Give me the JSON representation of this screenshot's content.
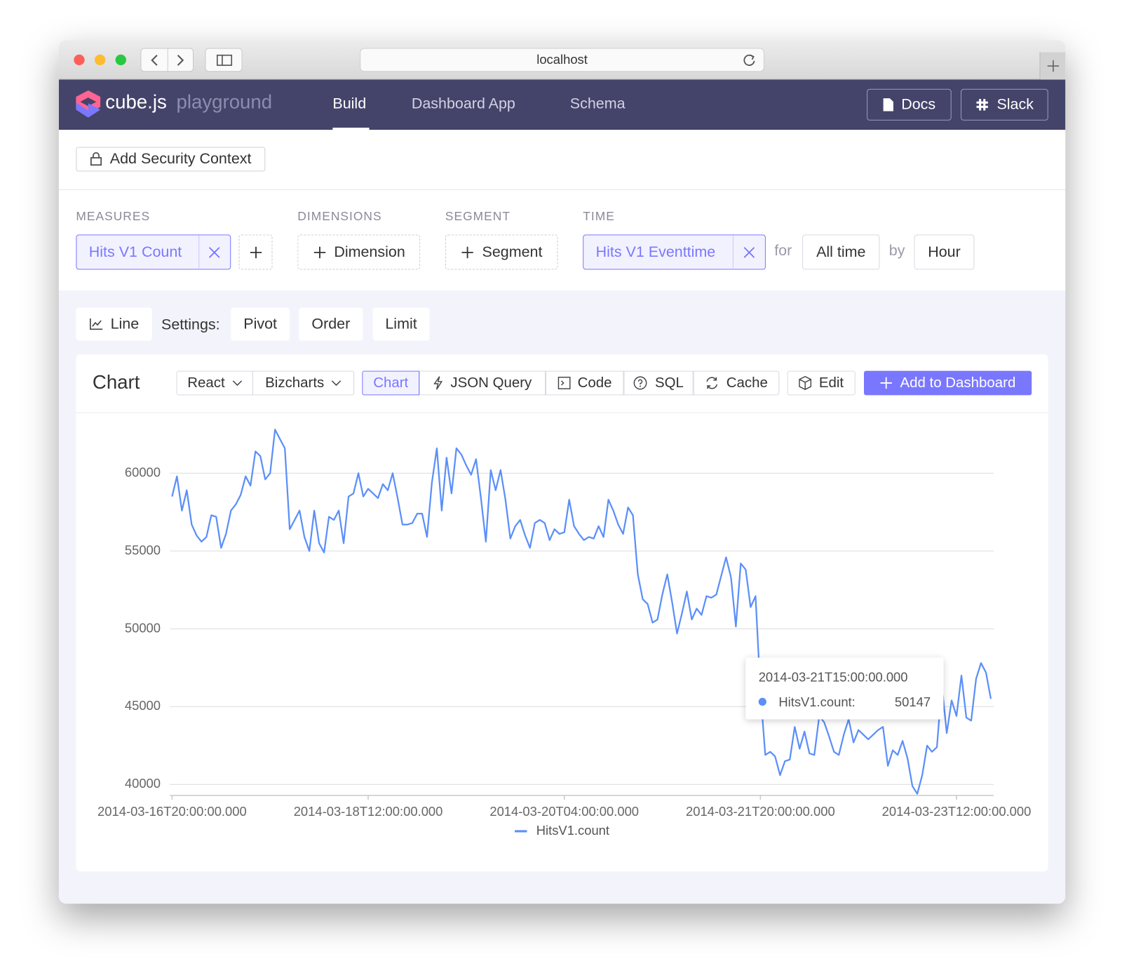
{
  "browser": {
    "url": "localhost"
  },
  "nav": {
    "logo": "cube.js",
    "logo_sub": "playground",
    "tabs": [
      "Build",
      "Dashboard App",
      "Schema"
    ],
    "buttons": [
      "Docs",
      "Slack"
    ]
  },
  "security": "Add Security Context",
  "query": {
    "measures_label": "MEASURES",
    "measure": "Hits V1 Count",
    "dimensions_label": "DIMENSIONS",
    "dimension_button": "Dimension",
    "segment_label": "SEGMENT",
    "segment_button": "Segment",
    "time_label": "TIME",
    "time": "Hits V1 Eventtime",
    "for": "for",
    "range": "All time",
    "by": "by",
    "granularity": "Hour"
  },
  "settings": {
    "chart_type": "Line",
    "label": "Settings:",
    "buttons": [
      "Pivot",
      "Order",
      "Limit"
    ]
  },
  "card": {
    "title": "Chart",
    "framework": "React",
    "library": "Bizcharts",
    "tabs": [
      "Chart",
      "JSON Query",
      "Code",
      "SQL",
      "Cache"
    ],
    "edit": "Edit",
    "add": "Add to Dashboard"
  },
  "chart_data": {
    "type": "line",
    "x": [
      "2014-03-16T20:00:00.000",
      "2014-03-16T21:00:00.000",
      "2014-03-16T22:00:00.000",
      "2014-03-16T23:00:00.000",
      "2014-03-17T00:00:00.000",
      "2014-03-17T01:00:00.000",
      "2014-03-17T02:00:00.000",
      "2014-03-17T03:00:00.000",
      "2014-03-17T04:00:00.000",
      "2014-03-17T05:00:00.000",
      "2014-03-17T06:00:00.000",
      "2014-03-17T07:00:00.000",
      "2014-03-17T08:00:00.000",
      "2014-03-17T09:00:00.000",
      "2014-03-17T10:00:00.000",
      "2014-03-17T11:00:00.000",
      "2014-03-17T12:00:00.000",
      "2014-03-17T13:00:00.000",
      "2014-03-17T14:00:00.000",
      "2014-03-17T15:00:00.000",
      "2014-03-17T16:00:00.000",
      "2014-03-17T17:00:00.000",
      "2014-03-17T18:00:00.000",
      "2014-03-17T19:00:00.000",
      "2014-03-17T20:00:00.000",
      "2014-03-17T21:00:00.000",
      "2014-03-17T22:00:00.000",
      "2014-03-17T23:00:00.000",
      "2014-03-18T00:00:00.000",
      "2014-03-18T01:00:00.000",
      "2014-03-18T02:00:00.000",
      "2014-03-18T03:00:00.000",
      "2014-03-18T04:00:00.000",
      "2014-03-18T05:00:00.000",
      "2014-03-18T06:00:00.000",
      "2014-03-18T07:00:00.000",
      "2014-03-18T08:00:00.000",
      "2014-03-18T09:00:00.000",
      "2014-03-18T10:00:00.000",
      "2014-03-18T11:00:00.000",
      "2014-03-18T12:00:00.000",
      "2014-03-18T13:00:00.000",
      "2014-03-18T14:00:00.000",
      "2014-03-18T15:00:00.000",
      "2014-03-18T16:00:00.000",
      "2014-03-18T17:00:00.000",
      "2014-03-18T18:00:00.000",
      "2014-03-18T19:00:00.000",
      "2014-03-18T20:00:00.000",
      "2014-03-18T21:00:00.000",
      "2014-03-18T22:00:00.000",
      "2014-03-18T23:00:00.000",
      "2014-03-19T00:00:00.000",
      "2014-03-19T01:00:00.000",
      "2014-03-19T02:00:00.000",
      "2014-03-19T03:00:00.000",
      "2014-03-19T04:00:00.000",
      "2014-03-19T05:00:00.000",
      "2014-03-19T06:00:00.000",
      "2014-03-19T07:00:00.000",
      "2014-03-19T08:00:00.000",
      "2014-03-19T09:00:00.000",
      "2014-03-19T10:00:00.000",
      "2014-03-19T11:00:00.000",
      "2014-03-19T12:00:00.000",
      "2014-03-19T13:00:00.000",
      "2014-03-19T14:00:00.000",
      "2014-03-19T15:00:00.000",
      "2014-03-19T16:00:00.000",
      "2014-03-19T17:00:00.000",
      "2014-03-19T18:00:00.000",
      "2014-03-19T19:00:00.000",
      "2014-03-19T20:00:00.000",
      "2014-03-19T21:00:00.000",
      "2014-03-19T22:00:00.000",
      "2014-03-19T23:00:00.000",
      "2014-03-20T00:00:00.000",
      "2014-03-20T01:00:00.000",
      "2014-03-20T02:00:00.000",
      "2014-03-20T03:00:00.000",
      "2014-03-20T04:00:00.000",
      "2014-03-20T05:00:00.000",
      "2014-03-20T06:00:00.000",
      "2014-03-20T07:00:00.000",
      "2014-03-20T08:00:00.000",
      "2014-03-20T09:00:00.000",
      "2014-03-20T10:00:00.000",
      "2014-03-20T11:00:00.000",
      "2014-03-20T12:00:00.000",
      "2014-03-20T13:00:00.000",
      "2014-03-20T14:00:00.000",
      "2014-03-20T15:00:00.000",
      "2014-03-20T16:00:00.000",
      "2014-03-20T17:00:00.000",
      "2014-03-20T18:00:00.000",
      "2014-03-20T19:00:00.000",
      "2014-03-20T20:00:00.000",
      "2014-03-20T21:00:00.000",
      "2014-03-20T22:00:00.000",
      "2014-03-20T23:00:00.000",
      "2014-03-21T00:00:00.000",
      "2014-03-21T01:00:00.000",
      "2014-03-21T02:00:00.000",
      "2014-03-21T03:00:00.000",
      "2014-03-21T04:00:00.000",
      "2014-03-21T05:00:00.000",
      "2014-03-21T06:00:00.000",
      "2014-03-21T07:00:00.000",
      "2014-03-21T08:00:00.000",
      "2014-03-21T09:00:00.000",
      "2014-03-21T10:00:00.000",
      "2014-03-21T11:00:00.000",
      "2014-03-21T12:00:00.000",
      "2014-03-21T13:00:00.000",
      "2014-03-21T14:00:00.000",
      "2014-03-21T15:00:00.000",
      "2014-03-21T16:00:00.000",
      "2014-03-21T17:00:00.000",
      "2014-03-21T18:00:00.000",
      "2014-03-21T19:00:00.000",
      "2014-03-21T20:00:00.000",
      "2014-03-21T21:00:00.000",
      "2014-03-21T22:00:00.000",
      "2014-03-21T23:00:00.000",
      "2014-03-22T00:00:00.000",
      "2014-03-22T01:00:00.000",
      "2014-03-22T02:00:00.000",
      "2014-03-22T03:00:00.000",
      "2014-03-22T04:00:00.000",
      "2014-03-22T05:00:00.000",
      "2014-03-22T06:00:00.000",
      "2014-03-22T07:00:00.000",
      "2014-03-22T08:00:00.000",
      "2014-03-22T09:00:00.000",
      "2014-03-22T10:00:00.000",
      "2014-03-22T11:00:00.000",
      "2014-03-22T12:00:00.000",
      "2014-03-22T13:00:00.000",
      "2014-03-22T14:00:00.000",
      "2014-03-22T15:00:00.000",
      "2014-03-22T16:00:00.000",
      "2014-03-22T17:00:00.000",
      "2014-03-22T18:00:00.000",
      "2014-03-22T19:00:00.000",
      "2014-03-22T20:00:00.000",
      "2014-03-22T21:00:00.000",
      "2014-03-22T22:00:00.000",
      "2014-03-22T23:00:00.000",
      "2014-03-23T00:00:00.000",
      "2014-03-23T01:00:00.000",
      "2014-03-23T02:00:00.000",
      "2014-03-23T03:00:00.000",
      "2014-03-23T04:00:00.000",
      "2014-03-23T05:00:00.000",
      "2014-03-23T06:00:00.000",
      "2014-03-23T07:00:00.000",
      "2014-03-23T08:00:00.000",
      "2014-03-23T09:00:00.000",
      "2014-03-23T10:00:00.000",
      "2014-03-23T11:00:00.000",
      "2014-03-23T12:00:00.000",
      "2014-03-23T13:00:00.000",
      "2014-03-23T14:00:00.000",
      "2014-03-23T15:00:00.000",
      "2014-03-23T16:00:00.000",
      "2014-03-23T17:00:00.000",
      "2014-03-23T18:00:00.000",
      "2014-03-23T19:00:00.000"
    ],
    "series": [
      {
        "name": "HitsV1.count",
        "color": "#5b8ff9",
        "values": [
          58500,
          59800,
          57600,
          58900,
          56700,
          56000,
          55600,
          55900,
          57300,
          57200,
          55200,
          56100,
          57600,
          58000,
          58600,
          59800,
          59200,
          61400,
          61100,
          59600,
          60000,
          62800,
          62200,
          61600,
          56400,
          57000,
          57600,
          55900,
          55000,
          57600,
          55500,
          54900,
          57200,
          57000,
          57600,
          55500,
          58500,
          58700,
          60000,
          58500,
          59000,
          58700,
          58400,
          59300,
          58900,
          60000,
          58400,
          56700,
          56700,
          56800,
          57400,
          57400,
          55900,
          59400,
          61600,
          57600,
          61000,
          58700,
          61600,
          61200,
          60500,
          59900,
          60900,
          58400,
          55600,
          60200,
          58900,
          60200,
          58300,
          55800,
          56600,
          57000,
          56000,
          55200,
          56800,
          57000,
          56800,
          55700,
          56400,
          56100,
          56200,
          58300,
          56600,
          56100,
          55700,
          55900,
          55800,
          56600,
          55900,
          58300,
          57600,
          56700,
          56100,
          57800,
          57300,
          53500,
          51900,
          51600,
          50400,
          50600,
          52200,
          53500,
          51700,
          49700,
          51000,
          52400,
          50600,
          51300,
          50900,
          52100,
          52000,
          52200,
          53400,
          54600,
          53300,
          50147,
          54200,
          53800,
          51400,
          52100,
          46000,
          41900,
          42100,
          41800,
          40600,
          41500,
          41600,
          43700,
          42300,
          43400,
          42000,
          41900,
          44400,
          44000,
          43100,
          42100,
          41900,
          43200,
          44200,
          42700,
          43500,
          43200,
          42900,
          43200,
          43500,
          43700,
          41200,
          42200,
          41900,
          42800,
          41700,
          39900,
          39400,
          40600,
          42500,
          42100,
          42400,
          46400,
          43300,
          45400,
          44400,
          47000,
          44300,
          44100,
          46800,
          47800,
          47200,
          45500
        ]
      }
    ],
    "ylim": [
      39300,
      62800
    ],
    "yticks": [
      40000,
      45000,
      50000,
      55000,
      60000
    ],
    "xticks": [
      "2014-03-16T20:00:00.000",
      "2014-03-18T12:00:00.000",
      "2014-03-20T04:00:00.000",
      "2014-03-21T20:00:00.000",
      "2014-03-23T12:00:00.000"
    ],
    "grid": true,
    "legend": "bottom",
    "tooltip": {
      "x": "2014-03-21T15:00:00.000",
      "label": "HitsV1.count:"
    }
  }
}
